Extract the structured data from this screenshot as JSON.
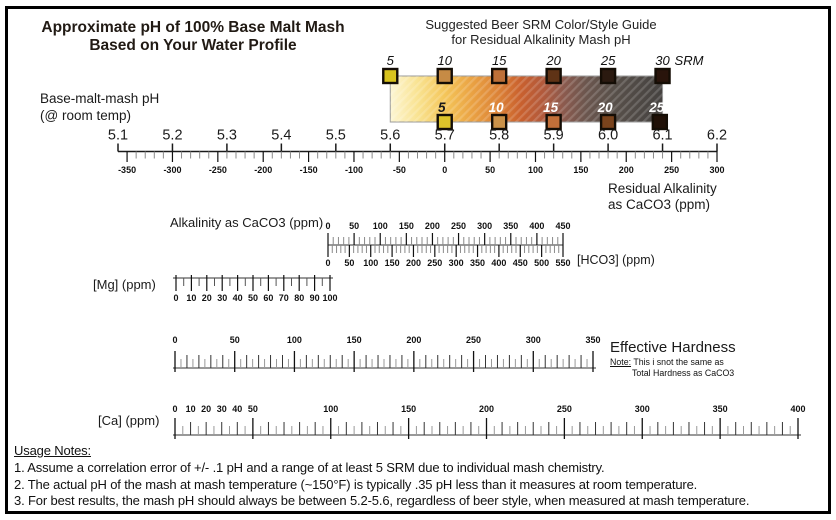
{
  "header": {
    "title_line1": "Approximate pH of 100% Base Malt Mash",
    "title_line2": "Based on Your Water Profile"
  },
  "srm_guide_header": {
    "title_line1": "Suggested Beer SRM Color/Style Guide",
    "title_line2": "for Residual Alkalinity Mash pH"
  },
  "labels": {
    "base_ph_line1": "Base-malt-mash pH",
    "base_ph_line2": "(@ room temp)",
    "ra_line1": "Residual Alkalinity",
    "ra_line2": "as CaCO3 (ppm)",
    "alkalinity": "Alkalinity as CaCO3 (ppm)",
    "hco3": "[HCO3] (ppm)",
    "mg": "[Mg] (ppm)",
    "effective_hardness": "Effective Hardness",
    "eh_note_label": "Note:",
    "eh_note_line1": " This i snot the same as",
    "eh_note_line2": "Total Hardness as CaCO3",
    "ca": "[Ca] (ppm)"
  },
  "usage_notes": {
    "heading": "Usage Notes:",
    "items": [
      "1. Assume a correlation error of +/- .1 pH and a range of at least 5 SRM due to individual mash chemistry.",
      "2. The actual pH of the mash at mash temperature (~150°F) is typically .35 pH less than it measures at room temperature.",
      "3. For best results, the mash pH should always be between 5.2-5.6, regardless of beer style, when measured at mash temperature."
    ]
  },
  "chart_data": {
    "type": "nomograph",
    "scales": {
      "ph": {
        "min": 5.1,
        "max": 6.2,
        "tick_step": 0.1,
        "labels": [
          "5.1",
          "5.2",
          "5.3",
          "5.4",
          "5.5",
          "5.6",
          "5.7",
          "5.8",
          "5.9",
          "6.0",
          "6.1",
          "6.2"
        ]
      },
      "residual_alkalinity": {
        "min": -350,
        "max": 300,
        "major": 50,
        "minor": 10,
        "zero_at_ph": 5.7,
        "units_per_ph": 600,
        "label_values": [
          -350,
          -300,
          -250,
          -200,
          -150,
          -100,
          -50,
          0,
          50,
          100,
          150,
          200,
          250,
          300
        ]
      },
      "alkalinity": {
        "min": 0,
        "max": 450,
        "major": 50,
        "minor": 10,
        "label_values": [
          0,
          50,
          100,
          150,
          200,
          250,
          300,
          350,
          400,
          450
        ]
      },
      "hco3": {
        "min": 0,
        "max": 550,
        "major": 50,
        "minor": 10,
        "label_values": [
          0,
          50,
          100,
          150,
          200,
          250,
          300,
          350,
          400,
          450,
          500,
          550
        ]
      },
      "mg": {
        "min": 0,
        "max": 100,
        "major": 10,
        "minor": 5,
        "label_values": [
          0,
          10,
          20,
          30,
          40,
          50,
          60,
          70,
          80,
          90,
          100
        ]
      },
      "effective_hardness": {
        "min": 0,
        "max": 350,
        "major": 50,
        "mid": 10,
        "minor": 5,
        "label_values": [
          0,
          50,
          100,
          150,
          200,
          250,
          300,
          350
        ]
      },
      "ca": {
        "min": 0,
        "max": 400,
        "major": 50,
        "mid": 10,
        "minor": 5,
        "label_values": [
          0,
          10,
          20,
          30,
          40,
          50,
          100,
          150,
          200,
          250,
          300,
          350,
          400
        ]
      }
    },
    "srm_guide": {
      "unit": "SRM",
      "bar_ph_range": [
        5.6,
        6.1
      ],
      "gradient_stops": [
        {
          "offset": 0,
          "color": "#fdf6d4"
        },
        {
          "offset": 0.1,
          "color": "#f9e392"
        },
        {
          "offset": 0.2,
          "color": "#f4c65a"
        },
        {
          "offset": 0.3,
          "color": "#eaa243"
        },
        {
          "offset": 0.4,
          "color": "#db8136"
        },
        {
          "offset": 0.48,
          "color": "#c9602e"
        },
        {
          "offset": 0.56,
          "color": "#b25a3c"
        },
        {
          "offset": 0.64,
          "color": "#8a5a4e"
        },
        {
          "offset": 0.72,
          "color": "#6b564e"
        },
        {
          "offset": 0.82,
          "color": "#58504a"
        },
        {
          "offset": 1,
          "color": "#454240"
        }
      ],
      "top_swatches": [
        {
          "srm": 5,
          "color": "#d8c31e"
        },
        {
          "srm": 10,
          "color": "#c68b45"
        },
        {
          "srm": 15,
          "color": "#bd7038"
        },
        {
          "srm": 20,
          "color": "#5f3316"
        },
        {
          "srm": 25,
          "color": "#2b1a10"
        },
        {
          "srm": 30,
          "color": "#29140b"
        }
      ],
      "bottom_swatches": [
        {
          "srm": 5,
          "ph": 5.7,
          "color": "#ddc32a",
          "label_color": "#1a1a1a"
        },
        {
          "srm": 10,
          "ph": 5.8,
          "color": "#cb9249",
          "label_color": "#ffffff"
        },
        {
          "srm": 15,
          "ph": 5.9,
          "color": "#c26f39",
          "label_color": "#ffffff"
        },
        {
          "srm": 20,
          "ph": 6.0,
          "color": "#7a431c",
          "label_color": "#ffffff"
        },
        {
          "srm": 25,
          "ph": 6.095,
          "color": "#201007",
          "label_color": "#ffffff"
        }
      ]
    }
  }
}
